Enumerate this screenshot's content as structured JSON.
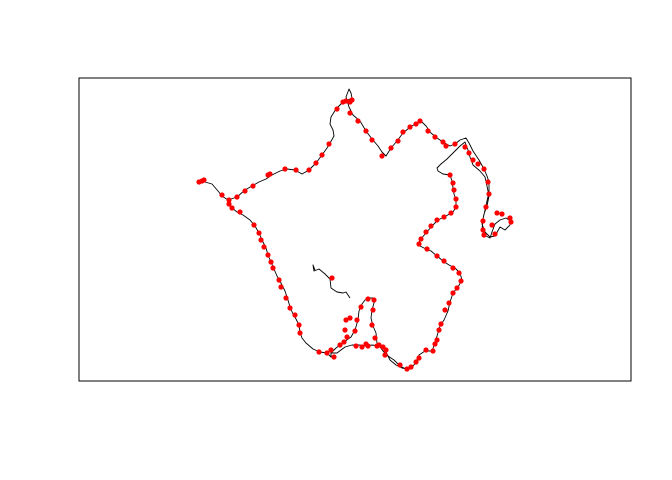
{
  "map": {
    "line_color": "#000000",
    "point_color": "#ff0000",
    "frame_color": "#000000"
  }
}
